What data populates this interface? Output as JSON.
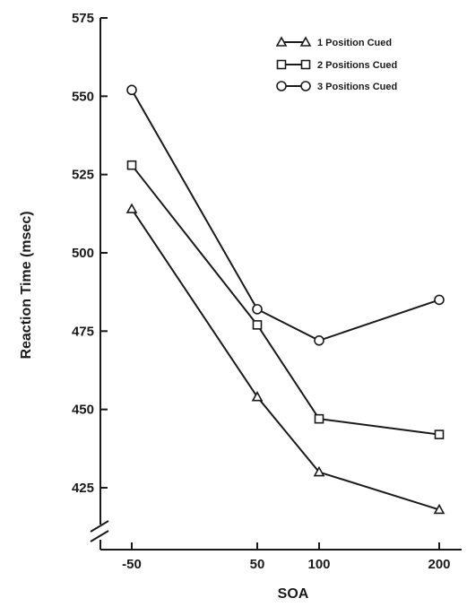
{
  "chart_data": {
    "type": "line",
    "title": "",
    "xlabel": "SOA",
    "ylabel": "Reaction Time (msec)",
    "x": [
      -50,
      50,
      100,
      200
    ],
    "x_ticks": [
      "-50",
      "50",
      "100",
      "200"
    ],
    "y_ticks": [
      "425",
      "450",
      "475",
      "500",
      "525",
      "550",
      "575"
    ],
    "ylim": [
      410,
      575
    ],
    "y_axis_break": true,
    "grid": false,
    "legend_position": "top-right",
    "series": [
      {
        "name": "1 Position Cued",
        "marker": "triangle",
        "values": [
          514,
          454,
          430,
          418
        ]
      },
      {
        "name": "2 Positions Cued",
        "marker": "square",
        "values": [
          528,
          477,
          447,
          442
        ]
      },
      {
        "name": "3 Positions Cued",
        "marker": "circle",
        "values": [
          552,
          482,
          472,
          485
        ]
      }
    ]
  }
}
